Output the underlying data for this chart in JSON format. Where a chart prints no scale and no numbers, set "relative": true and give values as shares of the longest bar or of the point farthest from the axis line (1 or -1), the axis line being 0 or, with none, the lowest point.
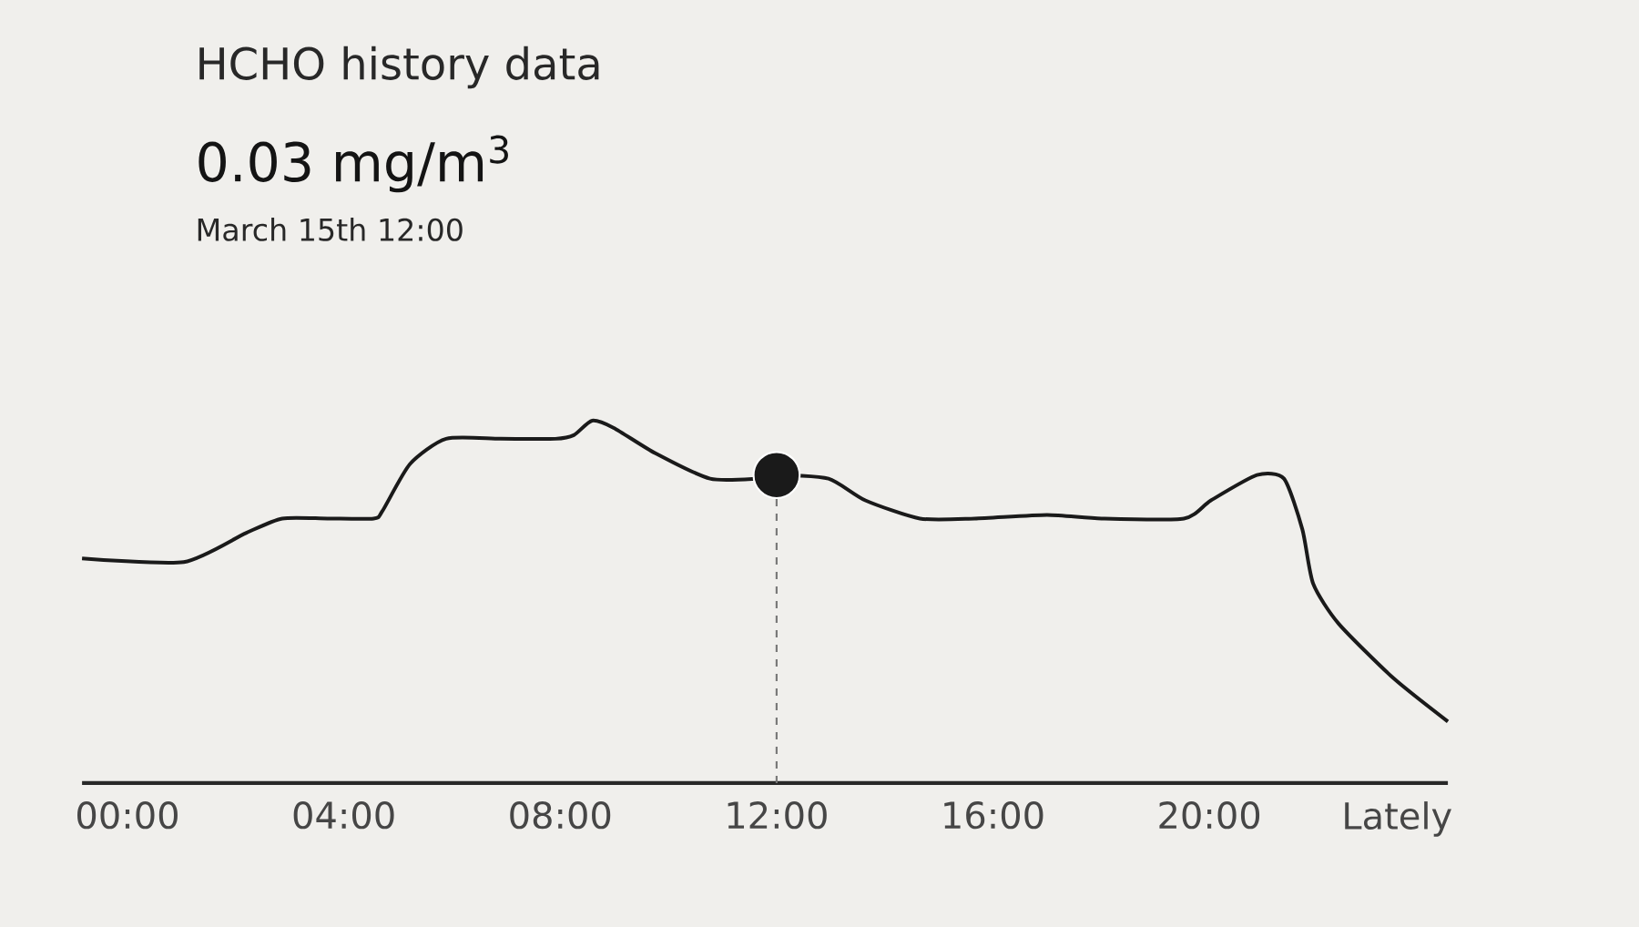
{
  "chart_data": {
    "type": "line",
    "title": "HCHO history data",
    "subtitle": "0.03 mg/m$^{3}$",
    "annotations": [
      "March 15th  12:00"
    ],
    "relative": true,
    "grid": false,
    "tick_labels": "x",
    "marker": "none",
    "line_style": "solid",
    "xlim": [
      -0.84,
      24.41
    ],
    "xticks": [
      {
        "value": 0,
        "label": "00:00"
      },
      {
        "value": 4,
        "label": "04:00"
      },
      {
        "value": 8,
        "label": "08:00"
      },
      {
        "value": 12,
        "label": "12:00"
      },
      {
        "value": 16,
        "label": "16:00"
      },
      {
        "value": 20,
        "label": "20:00"
      },
      {
        "value": 23.47,
        "label": "Lately"
      }
    ],
    "ref_lines": [
      {
        "axis": "x",
        "value": 12,
        "color": "#777777",
        "line_style": "dashed"
      }
    ],
    "series": [
      {
        "color": "#1a1a1a",
        "x": [
          -0.84,
          1.04,
          2.19,
          2.86,
          3.7,
          4.55,
          4.71,
          5.22,
          5.89,
          6.9,
          7.91,
          8.25,
          8.59,
          8.99,
          9.76,
          10.77,
          11.62,
          12,
          12.96,
          13.64,
          14.65,
          15.66,
          17.0,
          18.01,
          19.53,
          20.03,
          20.88,
          21.38,
          21.72,
          21.92,
          22.39,
          23.4,
          24.41
        ],
        "values": [
          0.62,
          0.61,
          0.69,
          0.73,
          0.73,
          0.73,
          0.75,
          0.88,
          0.95,
          0.95,
          0.95,
          0.96,
          1,
          0.98,
          0.91,
          0.84,
          0.84,
          0.85,
          0.84,
          0.78,
          0.73,
          0.73,
          0.74,
          0.73,
          0.73,
          0.78,
          0.85,
          0.84,
          0.7,
          0.55,
          0.44,
          0.29,
          0.17
        ]
      },
      {
        "type": "scatter",
        "marker": "circle",
        "color": "#1a1a1a",
        "x": [
          12
        ],
        "values": [
          0.85
        ]
      }
    ]
  }
}
